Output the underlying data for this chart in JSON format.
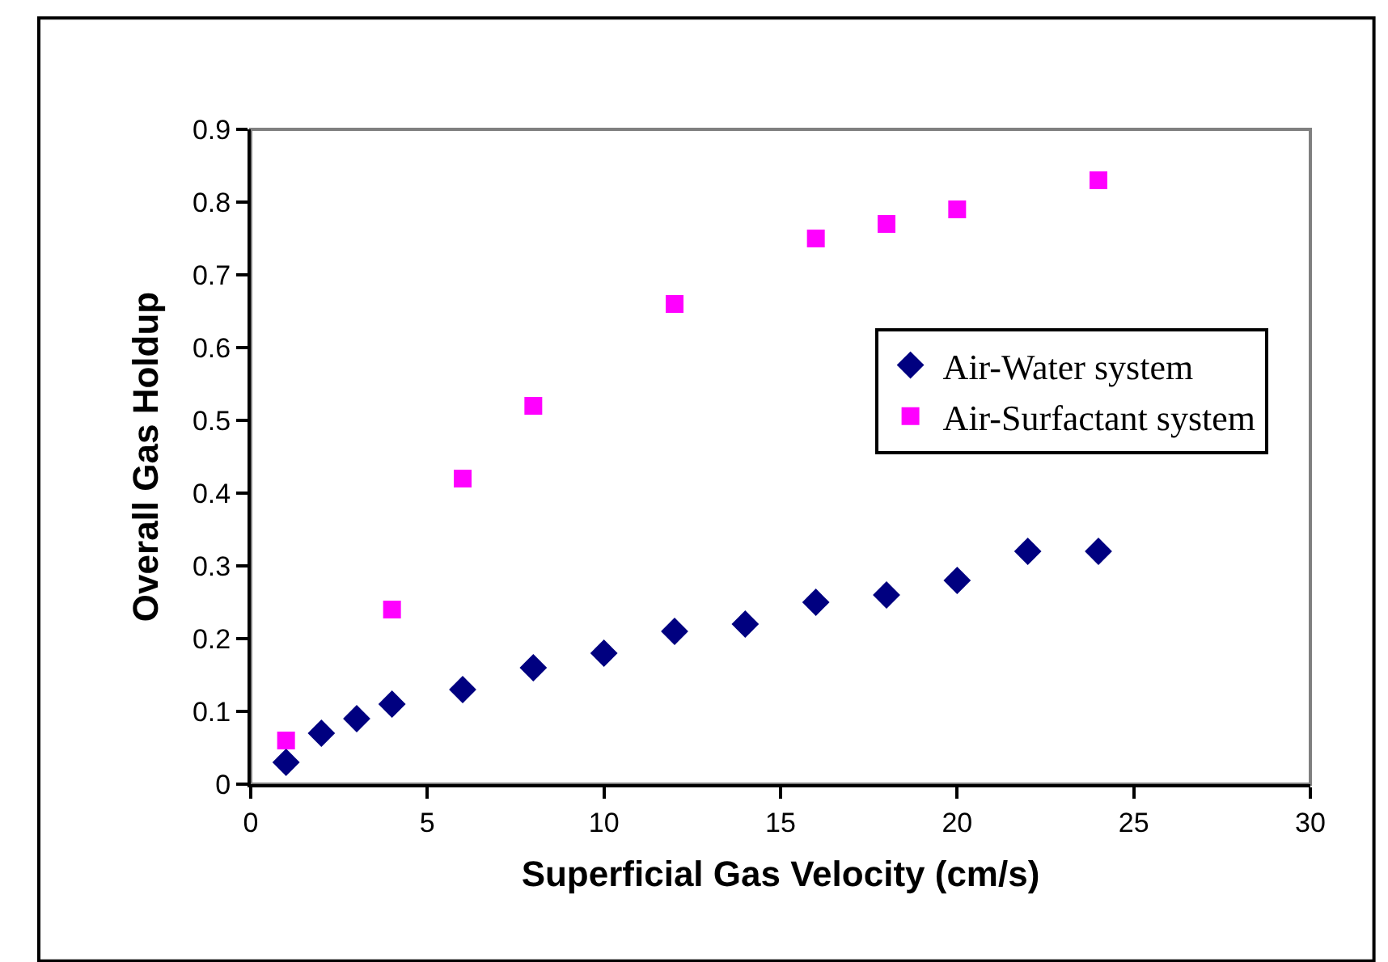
{
  "chart_data": {
    "type": "scatter",
    "xlabel": "Superficial Gas Velocity (cm/s)",
    "ylabel": "Overall Gas Holdup",
    "series": [
      {
        "name": "Air-Water system",
        "color": "#000080",
        "marker": "diamond",
        "x": [
          1,
          2,
          3,
          4,
          6,
          8,
          10,
          12,
          14,
          16,
          18,
          20,
          22,
          24
        ],
        "values": [
          0.03,
          0.07,
          0.09,
          0.11,
          0.13,
          0.16,
          0.18,
          0.21,
          0.22,
          0.25,
          0.26,
          0.28,
          0.32,
          0.32
        ]
      },
      {
        "name": "Air-Surfactant system",
        "color": "#ff00ff",
        "marker": "square",
        "x": [
          1,
          4,
          6,
          8,
          12,
          16,
          18,
          20,
          24
        ],
        "values": [
          0.06,
          0.24,
          0.42,
          0.52,
          0.66,
          0.75,
          0.77,
          0.79,
          0.83
        ]
      }
    ],
    "xlim": [
      0,
      30
    ],
    "xticks": [
      0,
      5,
      10,
      15,
      20,
      25,
      30
    ],
    "ylim": [
      0,
      0.9
    ],
    "yticks": [
      0,
      0.1,
      0.2,
      0.3,
      0.4,
      0.5,
      0.6,
      0.7,
      0.8,
      0.9
    ],
    "grid": false,
    "legend": "right"
  }
}
